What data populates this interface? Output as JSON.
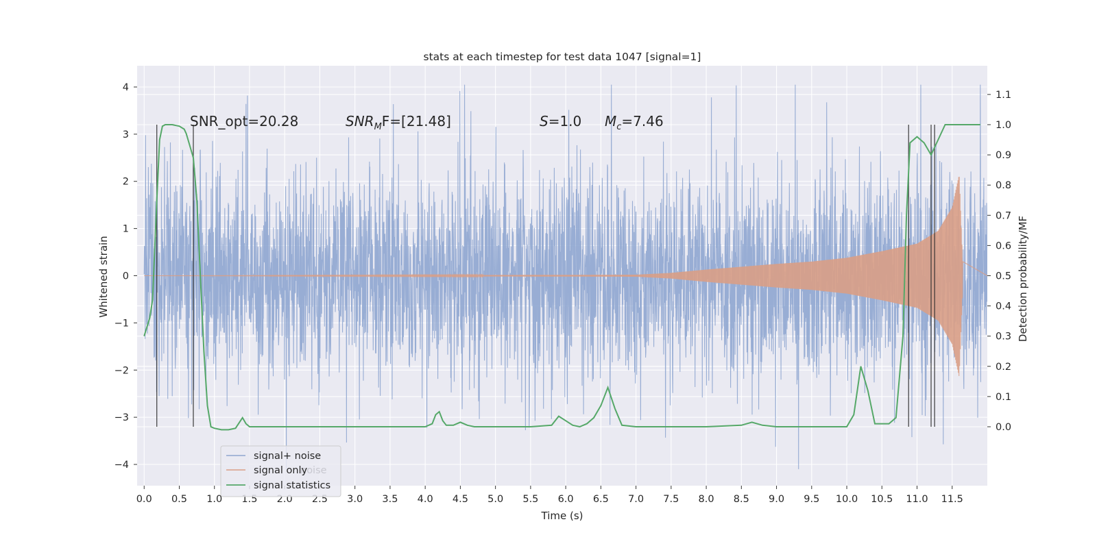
{
  "chart_data": {
    "type": "line",
    "title": "stats at each timestep for test data 1047 [signal=1]",
    "xlabel": "Time (s)",
    "ylabel_left": "Whitened strain",
    "ylabel_right": "Detection probability/MF",
    "xlim": [
      -0.1,
      12.0
    ],
    "ylim_left": [
      -4.45,
      4.45
    ],
    "ylim_right": [
      -0.195,
      1.195
    ],
    "x_ticks": [
      "0.0",
      "0.5",
      "1.0",
      "1.5",
      "2.0",
      "2.5",
      "3.0",
      "3.5",
      "4.0",
      "4.5",
      "5.0",
      "5.5",
      "6.0",
      "6.5",
      "7.0",
      "7.5",
      "8.0",
      "8.5",
      "9.0",
      "9.5",
      "10.0",
      "10.5",
      "11.0",
      "11.5"
    ],
    "y_left_ticks": [
      "4",
      "3",
      "2",
      "1",
      "0",
      "−1",
      "−2",
      "−3",
      "−4"
    ],
    "y_right_ticks": [
      "1.1",
      "1.0",
      "0.9",
      "0.8",
      "0.7",
      "0.6",
      "0.5",
      "0.4",
      "0.3",
      "0.2",
      "0.1",
      "0.0"
    ],
    "grid": true,
    "legend_position": "lower-left",
    "annotations": {
      "snr_opt": "SNR_opt=20.28",
      "snr_mf_label": "SNR",
      "snr_mf_sub": "M",
      "snr_mf_rest": "F=[21.48]",
      "s_sym": "S",
      "s_rest": "=1.0",
      "mc_sym": "M",
      "mc_sub": "c",
      "mc_rest": "=7.46"
    },
    "legend_ghost_text": "noise",
    "series": [
      {
        "name": "signal+ noise",
        "axis": "left",
        "color": "#8fa6d0",
        "kind": "noise",
        "x_range": [
          0.0,
          12.0
        ],
        "approx_envelope_left_units": [
          -4.1,
          4.05
        ]
      },
      {
        "name": "signal only",
        "axis": "left",
        "color": "#d99e86",
        "kind": "chirp",
        "x_range": [
          0.0,
          11.65
        ],
        "envelope_points": [
          [
            0.0,
            0.0
          ],
          [
            7.0,
            0.02
          ],
          [
            7.5,
            0.06
          ],
          [
            8.0,
            0.13
          ],
          [
            8.5,
            0.19
          ],
          [
            9.0,
            0.25
          ],
          [
            9.5,
            0.3
          ],
          [
            10.0,
            0.38
          ],
          [
            10.5,
            0.52
          ],
          [
            11.0,
            0.68
          ],
          [
            11.3,
            0.95
          ],
          [
            11.5,
            1.45
          ],
          [
            11.6,
            2.15
          ],
          [
            11.65,
            0.3
          ]
        ]
      },
      {
        "name": "signal statistics",
        "axis": "right",
        "color": "#55a868",
        "kind": "line",
        "points": [
          [
            0.0,
            0.3
          ],
          [
            0.08,
            0.36
          ],
          [
            0.12,
            0.42
          ],
          [
            0.18,
            0.75
          ],
          [
            0.22,
            0.95
          ],
          [
            0.26,
            0.995
          ],
          [
            0.3,
            1.0
          ],
          [
            0.4,
            1.0
          ],
          [
            0.5,
            0.995
          ],
          [
            0.57,
            0.985
          ],
          [
            0.6,
            0.97
          ],
          [
            0.65,
            0.93
          ],
          [
            0.7,
            0.89
          ],
          [
            0.75,
            0.75
          ],
          [
            0.8,
            0.5
          ],
          [
            0.85,
            0.25
          ],
          [
            0.9,
            0.07
          ],
          [
            0.95,
            0.0
          ],
          [
            1.0,
            -0.005
          ],
          [
            1.1,
            -0.01
          ],
          [
            1.2,
            -0.01
          ],
          [
            1.3,
            -0.005
          ],
          [
            1.4,
            0.03
          ],
          [
            1.45,
            0.01
          ],
          [
            1.5,
            0.0
          ],
          [
            2.0,
            0.0
          ],
          [
            3.0,
            0.0
          ],
          [
            4.0,
            0.0
          ],
          [
            4.1,
            0.01
          ],
          [
            4.15,
            0.04
          ],
          [
            4.2,
            0.05
          ],
          [
            4.25,
            0.02
          ],
          [
            4.3,
            0.005
          ],
          [
            4.4,
            0.005
          ],
          [
            4.5,
            0.015
          ],
          [
            4.6,
            0.005
          ],
          [
            4.7,
            0.0
          ],
          [
            5.5,
            0.0
          ],
          [
            5.8,
            0.005
          ],
          [
            5.9,
            0.035
          ],
          [
            6.0,
            0.02
          ],
          [
            6.1,
            0.005
          ],
          [
            6.2,
            0.0
          ],
          [
            6.3,
            0.01
          ],
          [
            6.4,
            0.03
          ],
          [
            6.5,
            0.07
          ],
          [
            6.6,
            0.13
          ],
          [
            6.7,
            0.06
          ],
          [
            6.8,
            0.005
          ],
          [
            7.0,
            0.0
          ],
          [
            8.0,
            0.0
          ],
          [
            8.5,
            0.005
          ],
          [
            8.65,
            0.015
          ],
          [
            8.8,
            0.005
          ],
          [
            9.0,
            0.0
          ],
          [
            10.0,
            0.0
          ],
          [
            10.1,
            0.04
          ],
          [
            10.2,
            0.2
          ],
          [
            10.3,
            0.12
          ],
          [
            10.4,
            0.01
          ],
          [
            10.6,
            0.01
          ],
          [
            10.7,
            0.03
          ],
          [
            10.8,
            0.3
          ],
          [
            10.85,
            0.7
          ],
          [
            10.9,
            0.94
          ],
          [
            11.0,
            0.96
          ],
          [
            11.1,
            0.94
          ],
          [
            11.2,
            0.9
          ],
          [
            11.3,
            0.95
          ],
          [
            11.4,
            1.0
          ],
          [
            11.6,
            1.0
          ],
          [
            11.75,
            1.0
          ],
          [
            11.9,
            1.0
          ]
        ]
      }
    ],
    "detection_markers_x": [
      0.18,
      0.7,
      10.88,
      11.2,
      11.25
    ]
  }
}
